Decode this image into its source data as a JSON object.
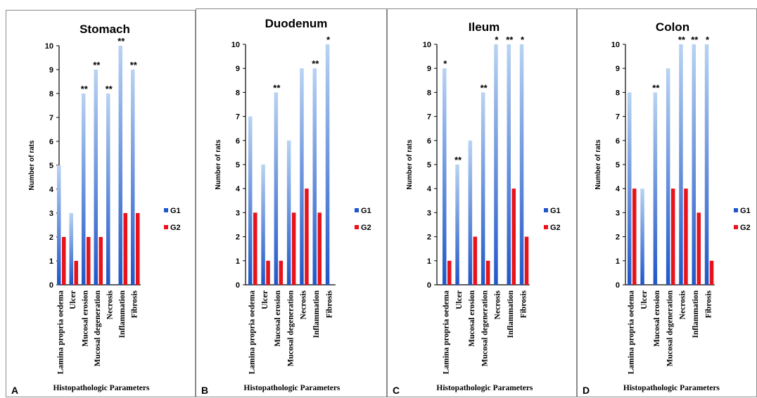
{
  "colors": {
    "g1_top": "#b9d3f2",
    "g1_bottom": "#1f56c9",
    "g2": "#e8121a",
    "axis": "#000000"
  },
  "chart_data": [
    {
      "type": "bar",
      "panel_label": "A",
      "title": "Stomach",
      "xlabel": "Histopathologic Parameters",
      "ylabel": "Number of rats",
      "ylim": [
        0,
        10
      ],
      "yticks": [
        0,
        1,
        2,
        3,
        4,
        5,
        6,
        7,
        8,
        9,
        10
      ],
      "categories": [
        "Lamina propria oedema",
        "Ulcer",
        "Mucosal erosion",
        "Mucosal degeneration",
        "Necrosis",
        "Inflammation",
        "Fibrosis"
      ],
      "series": [
        {
          "name": "G1",
          "values": [
            5,
            3,
            8,
            9,
            8,
            10,
            9
          ]
        },
        {
          "name": "G2",
          "values": [
            2,
            1,
            2,
            2,
            0,
            3,
            3
          ]
        }
      ],
      "annotations": [
        "",
        "",
        "**",
        "**",
        "**",
        "**",
        "**"
      ]
    },
    {
      "type": "bar",
      "panel_label": "B",
      "title": "Duodenum",
      "xlabel": "Histopathologic Parameters",
      "ylabel": "Number of rats",
      "ylim": [
        0,
        10
      ],
      "yticks": [
        0,
        1,
        2,
        3,
        4,
        5,
        6,
        7,
        8,
        9,
        10
      ],
      "categories": [
        "Lamina propria oedema",
        "Ulcer",
        "Mucosal erosion",
        "Mucosal degeneration",
        "Necrosis",
        "Inflammation",
        "Fibrosis"
      ],
      "series": [
        {
          "name": "G1",
          "values": [
            7,
            5,
            8,
            6,
            9,
            9,
            10
          ]
        },
        {
          "name": "G2",
          "values": [
            3,
            1,
            1,
            3,
            4,
            3,
            0
          ]
        }
      ],
      "annotations": [
        "",
        "",
        "**",
        "",
        "",
        "**",
        "*"
      ]
    },
    {
      "type": "bar",
      "panel_label": "C",
      "title": "Ileum",
      "xlabel": "Histopathologic Parameters",
      "ylabel": "Number of rats",
      "ylim": [
        0,
        10
      ],
      "yticks": [
        0,
        1,
        2,
        3,
        4,
        5,
        6,
        7,
        8,
        9,
        10
      ],
      "categories": [
        "Lamina propria oedema",
        "Ulcer",
        "Mucosal erosion",
        "Mucosal degeneration",
        "Necrosis",
        "Inflammation",
        "Fibrosis"
      ],
      "series": [
        {
          "name": "G1",
          "values": [
            9,
            5,
            6,
            8,
            10,
            10,
            10
          ]
        },
        {
          "name": "G2",
          "values": [
            1,
            0,
            2,
            1,
            0,
            4,
            2
          ]
        }
      ],
      "annotations": [
        "*",
        "**",
        "",
        "**",
        "*",
        "**",
        "*"
      ]
    },
    {
      "type": "bar",
      "panel_label": "D",
      "title": "Colon",
      "xlabel": "Histopathologic Parameters",
      "ylabel": "Number of rats",
      "ylim": [
        0,
        10
      ],
      "yticks": [
        0,
        1,
        2,
        3,
        4,
        5,
        6,
        7,
        8,
        9,
        10
      ],
      "categories": [
        "Lamina propria oedema",
        "Ulcer",
        "Mucosal erosion",
        "Mucosal degeneration",
        "Necrosis",
        "Inflammation",
        "Fibrosis"
      ],
      "series": [
        {
          "name": "G1",
          "values": [
            8,
            4,
            8,
            9,
            10,
            10,
            10
          ]
        },
        {
          "name": "G2",
          "values": [
            4,
            0,
            0,
            4,
            4,
            3,
            1
          ]
        }
      ],
      "annotations": [
        "",
        "",
        "**",
        "",
        "**",
        "**",
        "*"
      ]
    }
  ]
}
